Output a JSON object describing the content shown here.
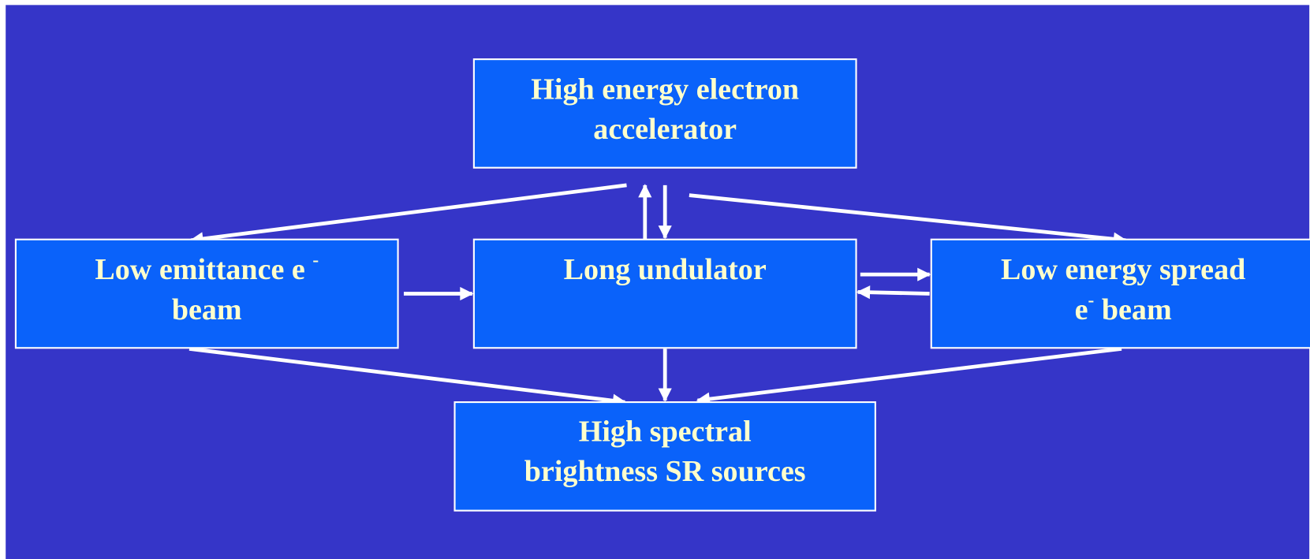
{
  "nodes": [
    {
      "lines": [
        [
          {
            "text": "High energy electron"
          }
        ],
        [
          {
            "text": "accelerator"
          }
        ]
      ]
    },
    {
      "lines": [
        [
          {
            "text": "Low emittance e "
          },
          {
            "sup": "-"
          }
        ],
        [
          {
            "text": "beam"
          }
        ]
      ]
    },
    {
      "lines": [
        [
          {
            "text": "Long undulator"
          }
        ]
      ]
    },
    {
      "lines": [
        [
          {
            "text": "Low energy spread"
          }
        ],
        [
          {
            "text": "e"
          },
          {
            "sup": "-"
          },
          {
            "text": " beam"
          }
        ]
      ]
    },
    {
      "lines": [
        [
          {
            "text": "High spectral"
          }
        ],
        [
          {
            "text": "brightness SR sources"
          }
        ]
      ]
    }
  ]
}
